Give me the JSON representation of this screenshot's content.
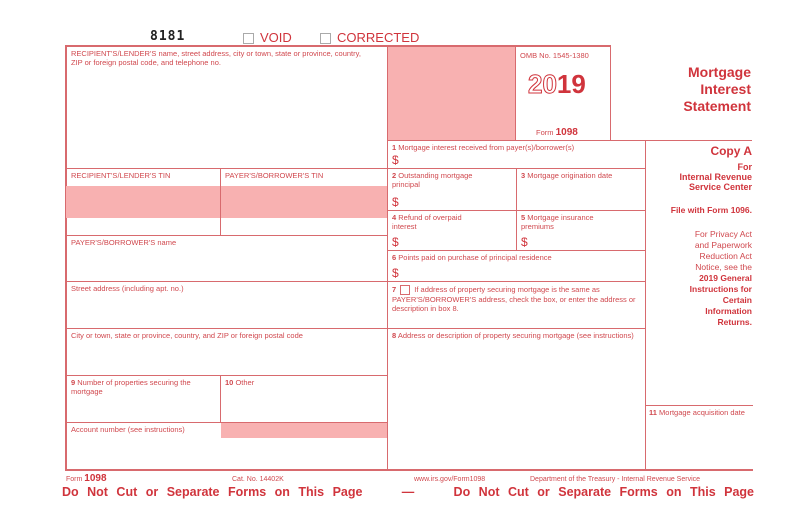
{
  "header": {
    "form_id": "8181",
    "void_label": "VOID",
    "corrected_label": "CORRECTED"
  },
  "left": {
    "recipient_label": "RECIPIENT'S/LENDER'S name, street address, city or town, state or province, country, ZIP or foreign postal code, and telephone no.",
    "recipient_tin": "RECIPIENT'S/LENDER'S TIN",
    "payer_tin": "PAYER'S/BORROWER'S TIN",
    "payer_name": "PAYER'S/BORROWER'S name",
    "street": "Street address (including apt. no.)",
    "city": "City or town, state or province, country, and ZIP or foreign postal code",
    "box9_num": "9",
    "box9": "Number of properties securing the mortgage",
    "box10_num": "10",
    "box10": "Other",
    "account": "Account number (see instructions)"
  },
  "omb": {
    "omb_no": "OMB No. 1545-1380",
    "year_outline": "20",
    "year_bold": "19",
    "form_prefix": "Form",
    "form_no": "1098"
  },
  "title": {
    "line1": "Mortgage",
    "line2": "Interest",
    "line3": "Statement"
  },
  "boxes": {
    "b1_num": "1",
    "b1": "Mortgage interest received from payer(s)/borrower(s)",
    "b2_num": "2",
    "b2": "Outstanding mortgage principal",
    "b3_num": "3",
    "b3": "Mortgage origination date",
    "b4_num": "4",
    "b4": "Refund of overpaid interest",
    "b5_num": "5",
    "b5": "Mortgage insurance premiums",
    "b6_num": "6",
    "b6": "Points paid on purchase of principal residence",
    "b7_num": "7",
    "b7": "If address of property securing mortgage is the same as PAYER'S/BORROWER'S address, check the box, or enter the address or description in box 8.",
    "b8_num": "8",
    "b8": "Address or description of property securing mortgage (see instructions)",
    "b11_num": "11",
    "b11": "Mortgage acquisition date",
    "dollar": "$"
  },
  "copy": {
    "copy_a": "Copy A",
    "for": "For",
    "irs1": "Internal Revenue",
    "irs2": "Service Center",
    "file_with": "File with Form 1096.",
    "privacy1": "For Privacy Act",
    "privacy2": "and Paperwork",
    "privacy3": "Reduction Act",
    "privacy4": "Notice, see the",
    "gi1": "2019 General",
    "gi2": "Instructions for",
    "gi3": "Certain",
    "gi4": "Information",
    "gi5": "Returns."
  },
  "footer": {
    "form_prefix": "Form",
    "form_no": "1098",
    "cat_no": "Cat. No. 14402K",
    "url": "www.irs.gov/Form1098",
    "dept": "Department of the Treasury - Internal Revenue Service",
    "warning_left": "Do Not Cut or Separate Forms on This Page",
    "dash": "—",
    "warning_right": "Do Not Cut or Separate Forms on This Page"
  }
}
